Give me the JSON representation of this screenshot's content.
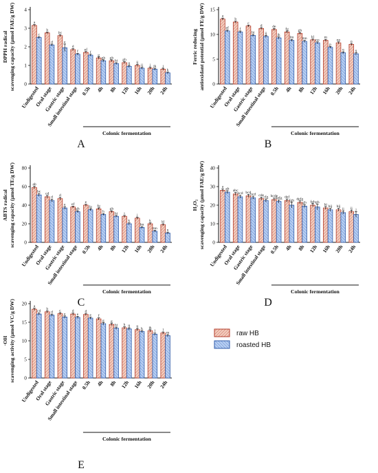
{
  "legend": {
    "raw": "raw HB",
    "roasted": "roasted HB"
  },
  "colors": {
    "raw_fill": "#e8b7a6",
    "raw_stroke": "#b33b2a",
    "roasted_fill": "#9fbef0",
    "roasted_stroke": "#2e5aa8"
  },
  "chart_data": [
    {
      "panel": "A",
      "type": "bar",
      "ylabel_lines": [
        "DPPH radical",
        "scavenging capacity (μmol FAE/g DW)"
      ],
      "ylim": [
        0,
        4
      ],
      "yticks": [
        0,
        1,
        2,
        3,
        4
      ],
      "categories": [
        "Undigested",
        "Oral stage",
        "Gastric stage",
        "Small intestinal stage",
        "0.5h",
        "4h",
        "8h",
        "12h",
        "16h",
        "20h",
        "24h"
      ],
      "group_label": "Colonic fermentation",
      "series": [
        {
          "name": "raw HB",
          "values": [
            3.15,
            2.75,
            2.6,
            1.85,
            1.7,
            1.4,
            1.25,
            1.15,
            1.0,
            0.85,
            0.8
          ],
          "errors": [
            0.05,
            0.05,
            0.05,
            0.05,
            0.05,
            0.05,
            0.05,
            0.05,
            0.05,
            0.05,
            0.05
          ],
          "letters": [
            "a",
            "b",
            "bc",
            "d",
            "ef",
            "g",
            "gh",
            "gh",
            "ij",
            "j",
            "j"
          ]
        },
        {
          "name": "roasted HB",
          "values": [
            2.5,
            2.1,
            1.95,
            1.6,
            1.55,
            1.25,
            1.1,
            0.95,
            0.85,
            0.8,
            0.6
          ],
          "errors": [
            0.05,
            0.05,
            0.2,
            0.05,
            0.05,
            0.05,
            0.05,
            0.05,
            0.05,
            0.05,
            0.05
          ],
          "letters": [
            "c",
            "d",
            "e",
            "f",
            "f",
            "gh",
            "hi",
            "ij",
            "ij",
            "jk",
            "k"
          ]
        }
      ]
    },
    {
      "panel": "B",
      "type": "bar",
      "ylabel_lines": [
        "Ferric reducing",
        "antioxidant potential (μmol FE/g DW)"
      ],
      "ylim": [
        0,
        15
      ],
      "yticks": [
        0,
        5,
        10,
        15
      ],
      "categories": [
        "Undigested",
        "Oral stage",
        "Gastric stage",
        "Small intestinal stage",
        "0.5h",
        "4h",
        "8h",
        "12h",
        "16h",
        "20h",
        "24h"
      ],
      "group_label": "Colonic fermentation",
      "series": [
        {
          "name": "raw HB",
          "values": [
            13.1,
            12.5,
            11.7,
            11.2,
            11.0,
            10.5,
            10.2,
            8.9,
            8.8,
            8.3,
            8.0
          ],
          "errors": [
            0.2,
            0.2,
            0.2,
            0.2,
            0.2,
            0.2,
            0.2,
            0.2,
            0.2,
            0.2,
            0.2
          ],
          "letters": [
            "a",
            "b",
            "c",
            "d",
            "de",
            "fg",
            "gh",
            "kl",
            "m",
            "no",
            "o"
          ]
        },
        {
          "name": "roasted HB",
          "values": [
            10.7,
            10.5,
            9.8,
            9.6,
            9.3,
            8.8,
            8.6,
            8.3,
            7.4,
            6.3,
            6.1
          ],
          "errors": [
            0.2,
            0.2,
            0.2,
            0.2,
            0.2,
            0.2,
            0.2,
            0.2,
            0.2,
            0.2,
            0.2
          ],
          "letters": [
            "ef",
            "f",
            "hi",
            "ij",
            "jk",
            "lm",
            "mn",
            "no",
            "p",
            "q",
            "q"
          ]
        }
      ]
    },
    {
      "panel": "C",
      "type": "bar",
      "ylabel_lines": [
        "ABTS radical",
        "scavenging capacity (μmol TE/g DW)"
      ],
      "ylim": [
        0,
        80
      ],
      "yticks": [
        0,
        20,
        40,
        60,
        80
      ],
      "categories": [
        "Undigested",
        "Oral stage",
        "Gastric stage",
        "Small intestinal stage",
        "0.5h",
        "4h",
        "8h",
        "12h",
        "16h",
        "20h",
        "24h"
      ],
      "group_label": "Colonic fermentation",
      "series": [
        {
          "name": "raw HB",
          "values": [
            59,
            49,
            47,
            38,
            40,
            36,
            33,
            28,
            26,
            20,
            19
          ],
          "errors": [
            1.5,
            1.5,
            1.5,
            1,
            1,
            1,
            1,
            1,
            1,
            1,
            1
          ],
          "letters": [
            "ab",
            "cd",
            "d",
            "ef",
            "e",
            "fg",
            "gh",
            "i",
            "j",
            "k",
            "kl"
          ]
        },
        {
          "name": "roasted HB",
          "values": [
            51,
            45,
            37,
            33,
            35,
            30,
            28,
            20,
            16,
            12,
            10
          ],
          "errors": [
            1.5,
            1.5,
            1.5,
            1,
            1,
            1,
            1,
            1,
            1,
            1,
            1
          ],
          "letters": [
            "bc",
            "d",
            "e",
            "gh",
            "fg",
            "h",
            "hi",
            "k",
            "lm",
            "mn",
            "n"
          ]
        }
      ]
    },
    {
      "panel": "D",
      "type": "bar",
      "ylabel_lines": [
        "H₂O₂",
        "scavenging capacity (μmol FAE/g DW)"
      ],
      "ylim": [
        0,
        40
      ],
      "yticks": [
        0,
        10,
        20,
        30,
        40
      ],
      "categories": [
        "Undigested",
        "Oral stage",
        "Gastric stage",
        "Small intestinal stage",
        "0.5h",
        "4h",
        "8h",
        "12h",
        "16h",
        "20h",
        "24h"
      ],
      "group_label": "Colonic fermentation",
      "series": [
        {
          "name": "raw HB",
          "values": [
            28,
            26,
            25,
            23.5,
            23,
            22.5,
            21.5,
            20,
            18.5,
            17.5,
            16.5
          ],
          "errors": [
            0.8,
            0.8,
            0.8,
            0.8,
            0.8,
            0.8,
            0.8,
            0.8,
            0.8,
            0.8,
            0.8
          ],
          "letters": [
            "a",
            "abc",
            "bcd",
            "cde",
            "bcde",
            "def",
            "defg",
            "fgh",
            "hi",
            "hij",
            "ij"
          ]
        },
        {
          "name": "roasted HB",
          "values": [
            27,
            24.5,
            24,
            22.5,
            22,
            20,
            19.5,
            19,
            17.5,
            16,
            15
          ],
          "errors": [
            0.8,
            0.8,
            0.8,
            0.8,
            0.8,
            1.5,
            0.8,
            1.5,
            0.8,
            0.8,
            1.5
          ],
          "letters": [
            "ab",
            "bcd",
            "bcd",
            "cfg",
            "defg",
            "fgh",
            "gh",
            "gh",
            "hij",
            "ij",
            "j"
          ]
        }
      ]
    },
    {
      "panel": "E",
      "type": "bar",
      "ylabel_lines": [
        "·OH",
        "scavenging activity (μmol VC/g DW)"
      ],
      "ylim": [
        0,
        20
      ],
      "yticks": [
        0,
        5,
        10,
        15,
        20
      ],
      "categories": [
        "Undigested",
        "Oral stage",
        "Gastric stage",
        "Small intestinal stage",
        "0.5h",
        "4h",
        "8h",
        "12h",
        "16h",
        "20h",
        "24h"
      ],
      "group_label": "Colonic fermentation",
      "series": [
        {
          "name": "raw HB",
          "values": [
            18.5,
            17.8,
            17.3,
            17.2,
            17.1,
            15.9,
            14.4,
            13.5,
            13.0,
            12.7,
            12.1
          ],
          "errors": [
            0.3,
            0.3,
            0.3,
            0.3,
            0.3,
            0.3,
            0.3,
            0.3,
            0.3,
            0.3,
            0.3
          ],
          "letters": [
            "a",
            "b",
            "c",
            "d",
            "d",
            "f",
            "g",
            "h",
            "ij",
            "jk",
            "l"
          ]
        },
        {
          "name": "roasted HB",
          "values": [
            17.2,
            16.9,
            16.4,
            16.3,
            16.1,
            14.6,
            13.4,
            13.2,
            12.5,
            11.8,
            11.4
          ],
          "errors": [
            0.3,
            0.3,
            0.3,
            0.3,
            0.3,
            0.3,
            0.3,
            0.3,
            0.3,
            0.3,
            0.3
          ],
          "letters": [
            "cd",
            "d",
            "e",
            "e",
            "e",
            "g",
            "hi",
            "ij",
            "k",
            "l",
            "m"
          ]
        }
      ]
    }
  ]
}
